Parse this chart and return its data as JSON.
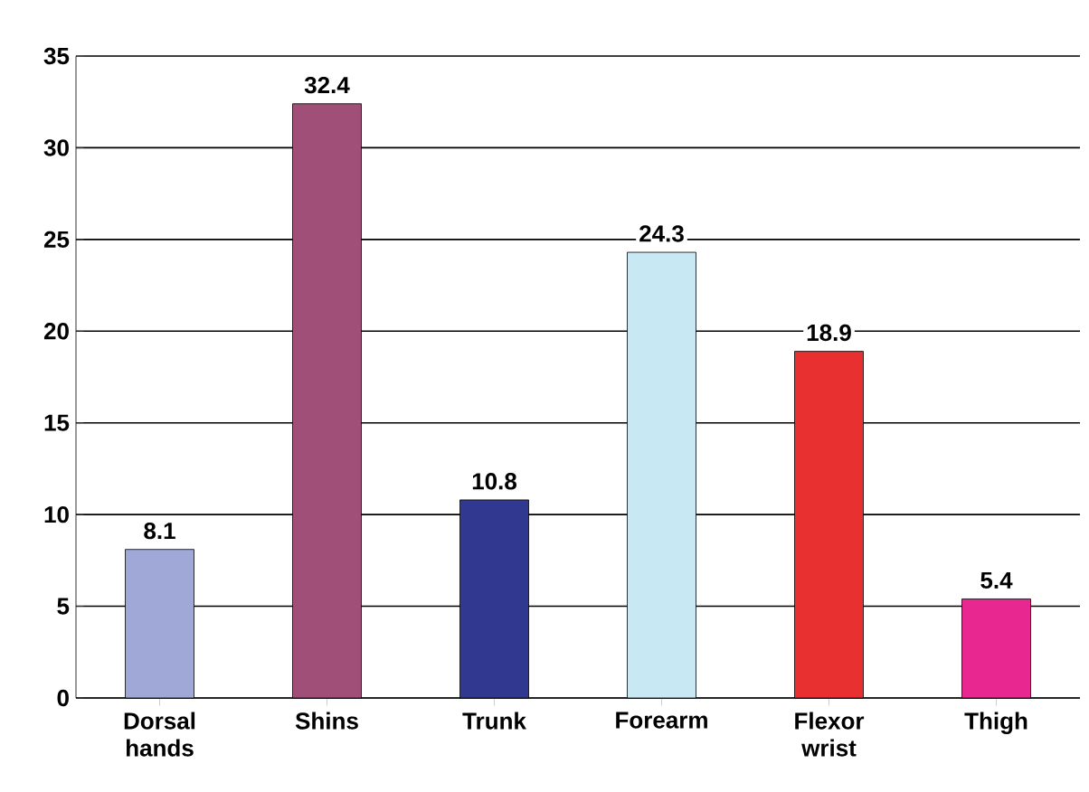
{
  "chart_data": {
    "type": "bar",
    "categories": [
      "Dorsal hands",
      "Shins",
      "Trunk",
      "Forearm",
      "Flexor wrist",
      "Thigh"
    ],
    "values": [
      8.1,
      32.4,
      10.8,
      24.3,
      18.9,
      5.4
    ],
    "colors": [
      "#a0a8d8",
      "#a05078",
      "#303890",
      "#c8e8f4",
      "#e83030",
      "#e82890"
    ],
    "ylim": [
      0,
      35
    ],
    "yticks": [
      0,
      5,
      10,
      15,
      20,
      25,
      30,
      35
    ],
    "grid": "y",
    "data_labels": true
  }
}
